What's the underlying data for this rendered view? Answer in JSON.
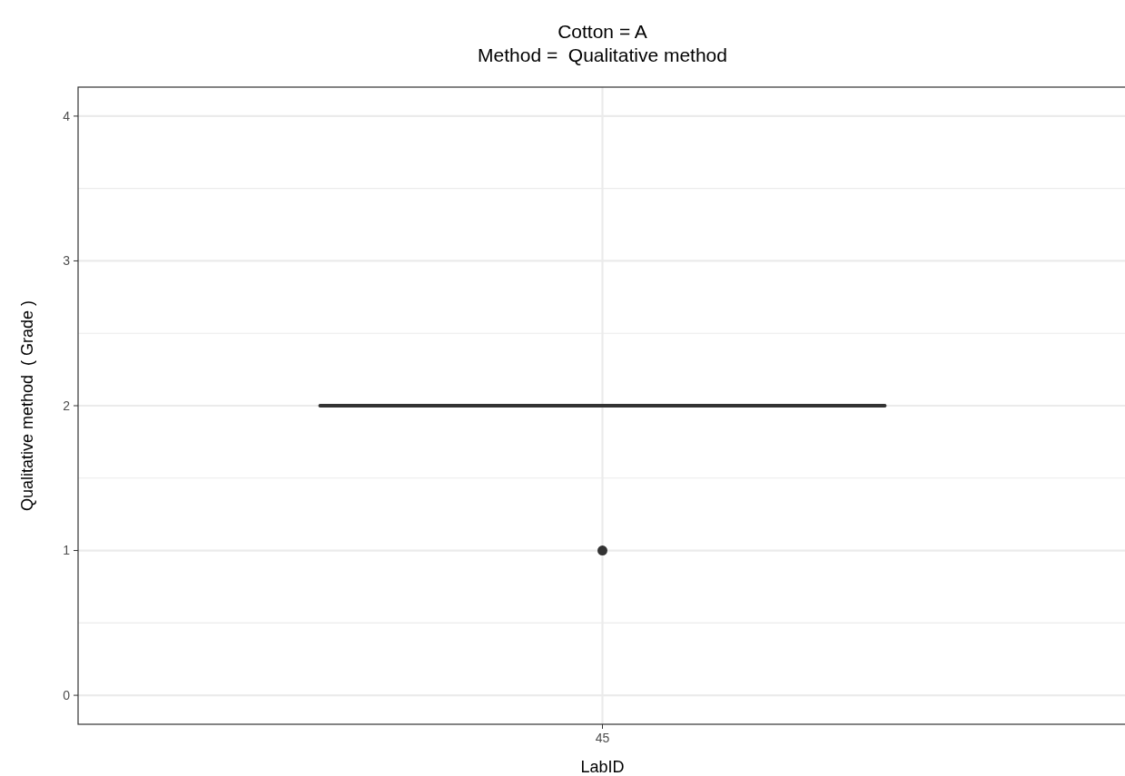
{
  "chart_data": {
    "type": "box",
    "title": "Cotton = A\nMethod =  Qualitative method",
    "xlabel": "LabID",
    "ylabel": "Qualitative method  ( Grade )",
    "categories": [
      "45"
    ],
    "boxes": [
      {
        "low": 2,
        "q1": 2,
        "median": 2,
        "q3": 2,
        "high": 2,
        "outliers": [
          1
        ]
      }
    ],
    "color": "#333333",
    "ylim": [
      -0.2,
      4.2
    ],
    "yticks": [
      0,
      {
        "value": 0.5,
        "label": null
      },
      1,
      {
        "value": 1.5,
        "label": null
      },
      2,
      {
        "value": 2.5,
        "label": null
      },
      3,
      {
        "value": 3.5,
        "label": null
      },
      4
    ],
    "grid": true
  }
}
